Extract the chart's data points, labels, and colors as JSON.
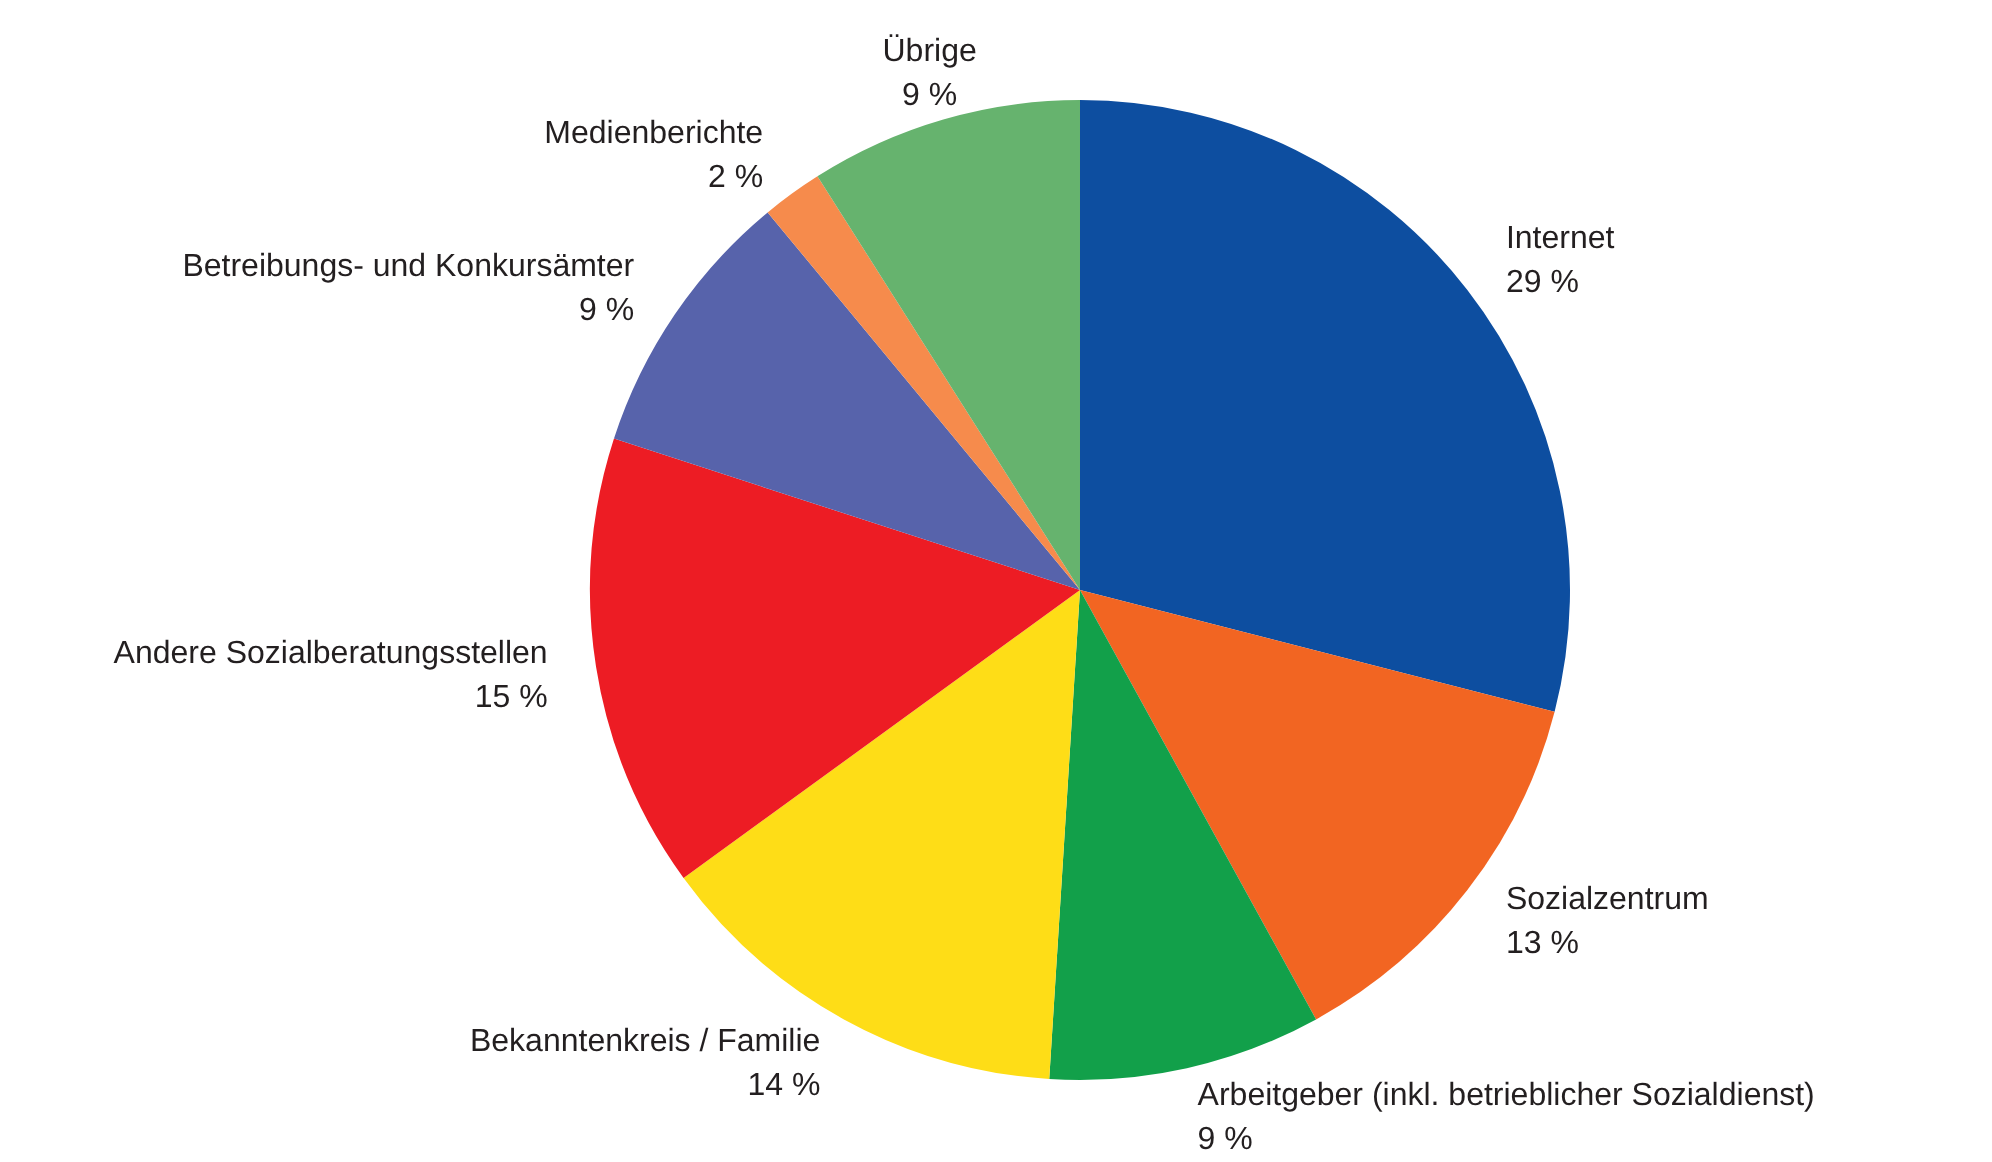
{
  "chart_data": {
    "type": "pie",
    "categories": [
      "Internet",
      "Sozialzentrum",
      "Arbeitgeber (inkl. betrieblicher Sozialdienst)",
      "Bekanntenkreis / Familie",
      "Andere Sozialberatungsstellen",
      "Betreibungs- und Konkursämter",
      "Medienberichte",
      "Übrige"
    ],
    "values": [
      29,
      13,
      9,
      14,
      15,
      9,
      2,
      9
    ],
    "colors": [
      "#0d4ea0",
      "#f26522",
      "#12a04a",
      "#fedd17",
      "#ed1c24",
      "#5763ab",
      "#f68b4c",
      "#66b36e"
    ],
    "value_labels": [
      "29 %",
      "13 %",
      "9 %",
      "14 %",
      "15 %",
      "9 %",
      "2 %",
      "9 %"
    ]
  }
}
